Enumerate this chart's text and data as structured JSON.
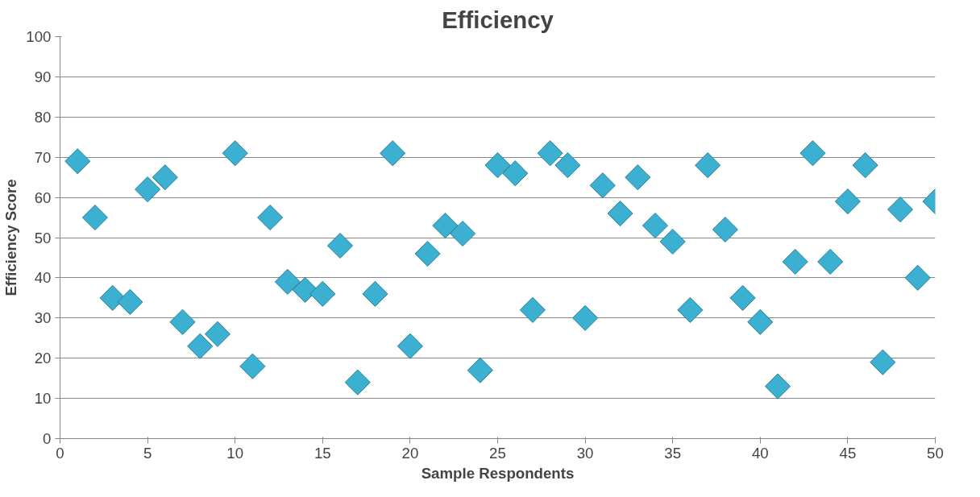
{
  "chart_data": {
    "type": "scatter",
    "title": "Efficiency",
    "xlabel": "Sample Respondents",
    "ylabel": "Efficiency Score",
    "x": [
      1,
      2,
      3,
      4,
      5,
      6,
      7,
      8,
      9,
      10,
      11,
      12,
      13,
      14,
      15,
      16,
      17,
      18,
      19,
      20,
      21,
      22,
      23,
      24,
      25,
      26,
      27,
      28,
      29,
      30,
      31,
      32,
      33,
      34,
      35,
      36,
      37,
      38,
      39,
      40,
      41,
      42,
      43,
      44,
      45,
      46,
      47,
      48,
      49,
      50
    ],
    "series": [
      {
        "color": "#3bb0d0",
        "values": [
          69,
          55,
          35,
          34,
          62,
          65,
          29,
          23,
          26,
          71,
          18,
          55,
          39,
          37,
          36,
          48,
          14,
          36,
          71,
          23,
          46,
          53,
          51,
          17,
          68,
          66,
          32,
          71,
          68,
          30,
          63,
          56,
          65,
          53,
          49,
          32,
          68,
          52,
          35,
          29,
          13,
          44,
          71,
          44,
          59,
          68,
          19,
          57,
          40,
          59
        ]
      }
    ],
    "xlim": [
      0,
      50
    ],
    "xticks": [
      0,
      5,
      10,
      15,
      20,
      25,
      30,
      35,
      40,
      45,
      50
    ],
    "ylim": [
      0,
      100
    ],
    "yticks": [
      0,
      10,
      20,
      30,
      40,
      50,
      60,
      70,
      80,
      90,
      100
    ],
    "grid": "y",
    "marker": "diamond"
  }
}
